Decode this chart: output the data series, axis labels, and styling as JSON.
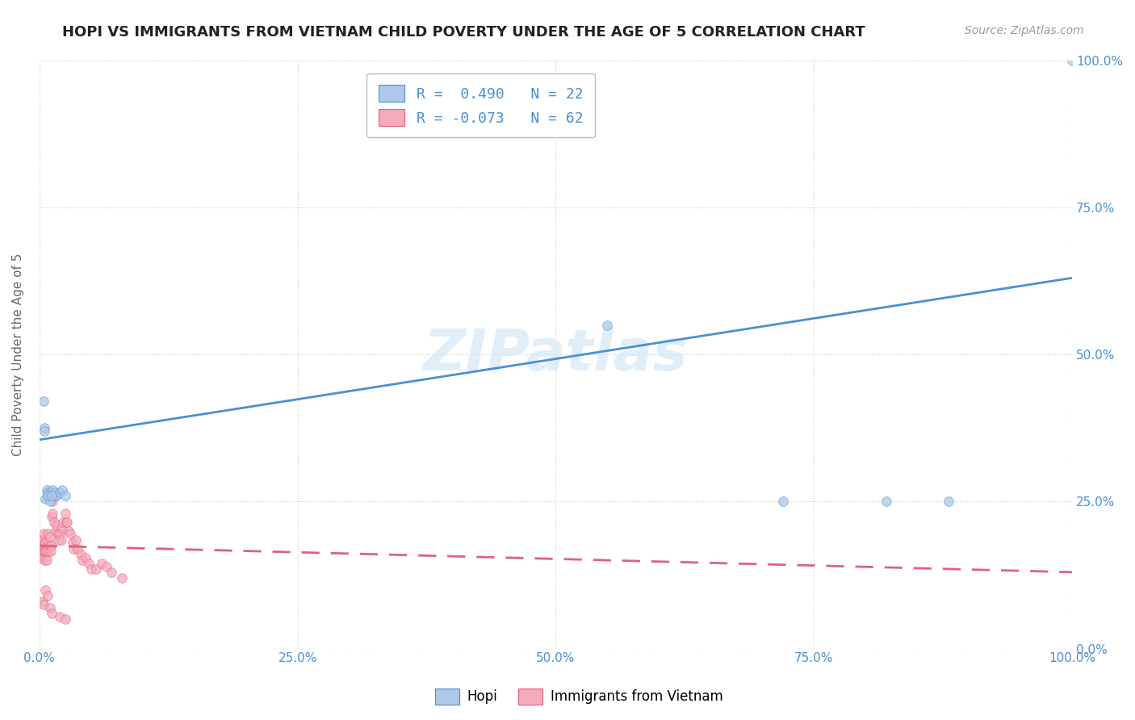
{
  "title": "HOPI VS IMMIGRANTS FROM VIETNAM CHILD POVERTY UNDER THE AGE OF 5 CORRELATION CHART",
  "source": "Source: ZipAtlas.com",
  "ylabel": "Child Poverty Under the Age of 5",
  "hopi_r": 0.49,
  "hopi_n": 22,
  "vietnam_r": -0.073,
  "vietnam_n": 62,
  "hopi_color": "#adc8e8",
  "vietnam_color": "#f5aaba",
  "hopi_line_color": "#4a8fd4",
  "vietnam_line_color": "#e06080",
  "background_color": "#ffffff",
  "grid_color": "#cccccc",
  "watermark_text": "ZIPatlas",
  "hopi_x": [
    0.004,
    0.005,
    0.006,
    0.007,
    0.008,
    0.009,
    0.01,
    0.011,
    0.013,
    0.015,
    0.017,
    0.02,
    0.022,
    0.025,
    0.005,
    0.008,
    0.012,
    0.55,
    0.72,
    0.82,
    0.88,
    1.0
  ],
  "hopi_y": [
    0.42,
    0.375,
    0.255,
    0.27,
    0.265,
    0.26,
    0.25,
    0.265,
    0.27,
    0.265,
    0.26,
    0.265,
    0.27,
    0.26,
    0.37,
    0.26,
    0.26,
    0.55,
    0.25,
    0.25,
    0.25,
    1.0
  ],
  "hopi_line_x": [
    0.0,
    1.0
  ],
  "hopi_line_y": [
    0.355,
    0.63
  ],
  "vietnam_x": [
    0.002,
    0.002,
    0.003,
    0.003,
    0.003,
    0.004,
    0.004,
    0.005,
    0.005,
    0.005,
    0.006,
    0.006,
    0.007,
    0.007,
    0.008,
    0.008,
    0.009,
    0.009,
    0.01,
    0.01,
    0.011,
    0.011,
    0.012,
    0.013,
    0.013,
    0.014,
    0.015,
    0.016,
    0.017,
    0.018,
    0.019,
    0.02,
    0.021,
    0.022,
    0.023,
    0.025,
    0.026,
    0.027,
    0.028,
    0.03,
    0.032,
    0.033,
    0.035,
    0.037,
    0.04,
    0.042,
    0.045,
    0.048,
    0.05,
    0.055,
    0.06,
    0.065,
    0.07,
    0.08,
    0.003,
    0.004,
    0.006,
    0.008,
    0.01,
    0.012,
    0.02,
    0.025
  ],
  "vietnam_y": [
    0.175,
    0.165,
    0.185,
    0.175,
    0.155,
    0.195,
    0.165,
    0.18,
    0.165,
    0.15,
    0.18,
    0.165,
    0.165,
    0.15,
    0.195,
    0.175,
    0.18,
    0.165,
    0.19,
    0.175,
    0.175,
    0.165,
    0.225,
    0.25,
    0.23,
    0.215,
    0.26,
    0.2,
    0.21,
    0.195,
    0.185,
    0.195,
    0.185,
    0.205,
    0.215,
    0.23,
    0.215,
    0.215,
    0.2,
    0.195,
    0.18,
    0.17,
    0.185,
    0.17,
    0.16,
    0.15,
    0.155,
    0.145,
    0.135,
    0.135,
    0.145,
    0.14,
    0.13,
    0.12,
    0.08,
    0.075,
    0.1,
    0.09,
    0.07,
    0.06,
    0.055,
    0.05
  ],
  "vietnam_line_x": [
    0.0,
    1.0
  ],
  "vietnam_line_y": [
    0.175,
    0.13
  ],
  "xlim": [
    0.0,
    1.0
  ],
  "ylim": [
    0.0,
    1.0
  ],
  "xticks": [
    0.0,
    0.25,
    0.5,
    0.75,
    1.0
  ],
  "xtick_labels": [
    "0.0%",
    "25.0%",
    "50.0%",
    "75.0%",
    "100.0%"
  ],
  "yticks": [
    0.0,
    0.25,
    0.5,
    0.75,
    1.0
  ],
  "ytick_labels": [
    "0.0%",
    "25.0%",
    "50.0%",
    "75.0%",
    "100.0%"
  ],
  "title_fontsize": 13,
  "axis_label_fontsize": 11,
  "tick_fontsize": 11,
  "legend_fontsize": 13,
  "source_fontsize": 10,
  "marker_size": 70,
  "marker_alpha": 0.75,
  "title_color": "#222222",
  "tick_color": "#4a8fd4"
}
